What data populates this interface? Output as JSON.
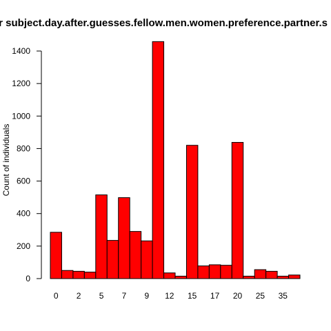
{
  "chart_data": {
    "type": "bar",
    "title": "or subject.day.after.guesses.fellow.men.women.preference.partner.s",
    "xlabel": "",
    "ylabel": "Count of individuals",
    "ylim": [
      0,
      1500
    ],
    "yticks": [
      0,
      200,
      400,
      600,
      800,
      1000,
      1200,
      1400
    ],
    "grid": false,
    "bar_color": "#ff0000",
    "x_tick_labels": [
      "0",
      "2",
      "5",
      "7",
      "9",
      "12",
      "15",
      "17",
      "20",
      "25",
      "35"
    ],
    "x_tick_bar_index": [
      0,
      2,
      4,
      6,
      8,
      10,
      12,
      14,
      16,
      18,
      20
    ],
    "values": [
      285,
      50,
      45,
      40,
      515,
      235,
      498,
      290,
      232,
      1458,
      35,
      15,
      820,
      78,
      85,
      82,
      838,
      15,
      55,
      45,
      15,
      22
    ]
  }
}
